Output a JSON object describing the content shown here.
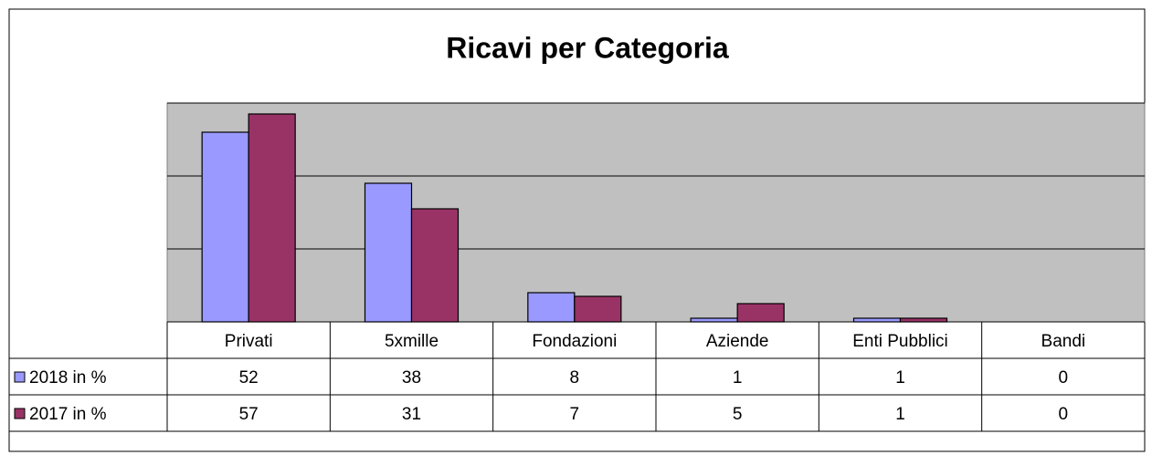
{
  "chart_data": {
    "type": "bar",
    "title": "Ricavi per Categoria",
    "categories": [
      "Privati",
      "5xmille",
      "Fondazioni",
      "Aziende",
      "Enti Pubblici",
      "Bandi"
    ],
    "series": [
      {
        "name": "2018 in %",
        "color": "#9999ff",
        "values": [
          52,
          38,
          8,
          1,
          1,
          0
        ]
      },
      {
        "name": "2017 in %",
        "color": "#993366",
        "values": [
          57,
          31,
          7,
          5,
          1,
          0
        ]
      }
    ],
    "ylim": [
      0,
      60
    ],
    "yticks": [
      0,
      20,
      40,
      60
    ],
    "grid": true
  }
}
